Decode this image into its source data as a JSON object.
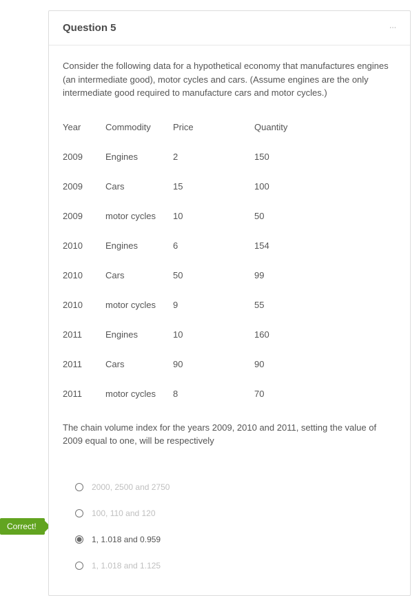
{
  "question": {
    "title": "Question 5",
    "intro": "Consider the following data for a hypothetical economy that manufactures engines (an intermediate good), motor cycles and cars. (Assume engines are the only intermediate good required to manufacture cars and motor cycles.)",
    "table": {
      "columns": [
        "Year",
        "Commodity",
        "Price",
        "Quantity"
      ],
      "rows": [
        [
          "2009",
          "Engines",
          "2",
          "150"
        ],
        [
          "2009",
          "Cars",
          "15",
          "100"
        ],
        [
          "2009",
          "motor cycles",
          "10",
          "50"
        ],
        [
          "2010",
          "Engines",
          "6",
          "154"
        ],
        [
          "2010",
          "Cars",
          "50",
          "99"
        ],
        [
          "2010",
          "motor cycles",
          "9",
          "55"
        ],
        [
          "2011",
          "Engines",
          "10",
          "160"
        ],
        [
          "2011",
          "Cars",
          "90",
          "90"
        ],
        [
          "2011",
          "motor cycles",
          "8",
          "70"
        ]
      ]
    },
    "outro": "The chain volume index for the years 2009, 2010 and 2011, setting the value of 2009 equal to one, will be respectively",
    "options": [
      {
        "label": "2000, 2500 and 2750",
        "selected": false
      },
      {
        "label": "100, 110 and 120",
        "selected": false
      },
      {
        "label": "1, 1.018 and 0.959",
        "selected": true
      },
      {
        "label": "1, 1.018 and 1.125",
        "selected": false
      }
    ]
  },
  "feedback": {
    "label": "Correct!",
    "color": "#62a420"
  },
  "styling": {
    "card_border": "#dcdcdc",
    "text_color": "#555555",
    "muted_color": "#bfbfbf",
    "font_size_body": 13,
    "font_size_title": 15
  }
}
